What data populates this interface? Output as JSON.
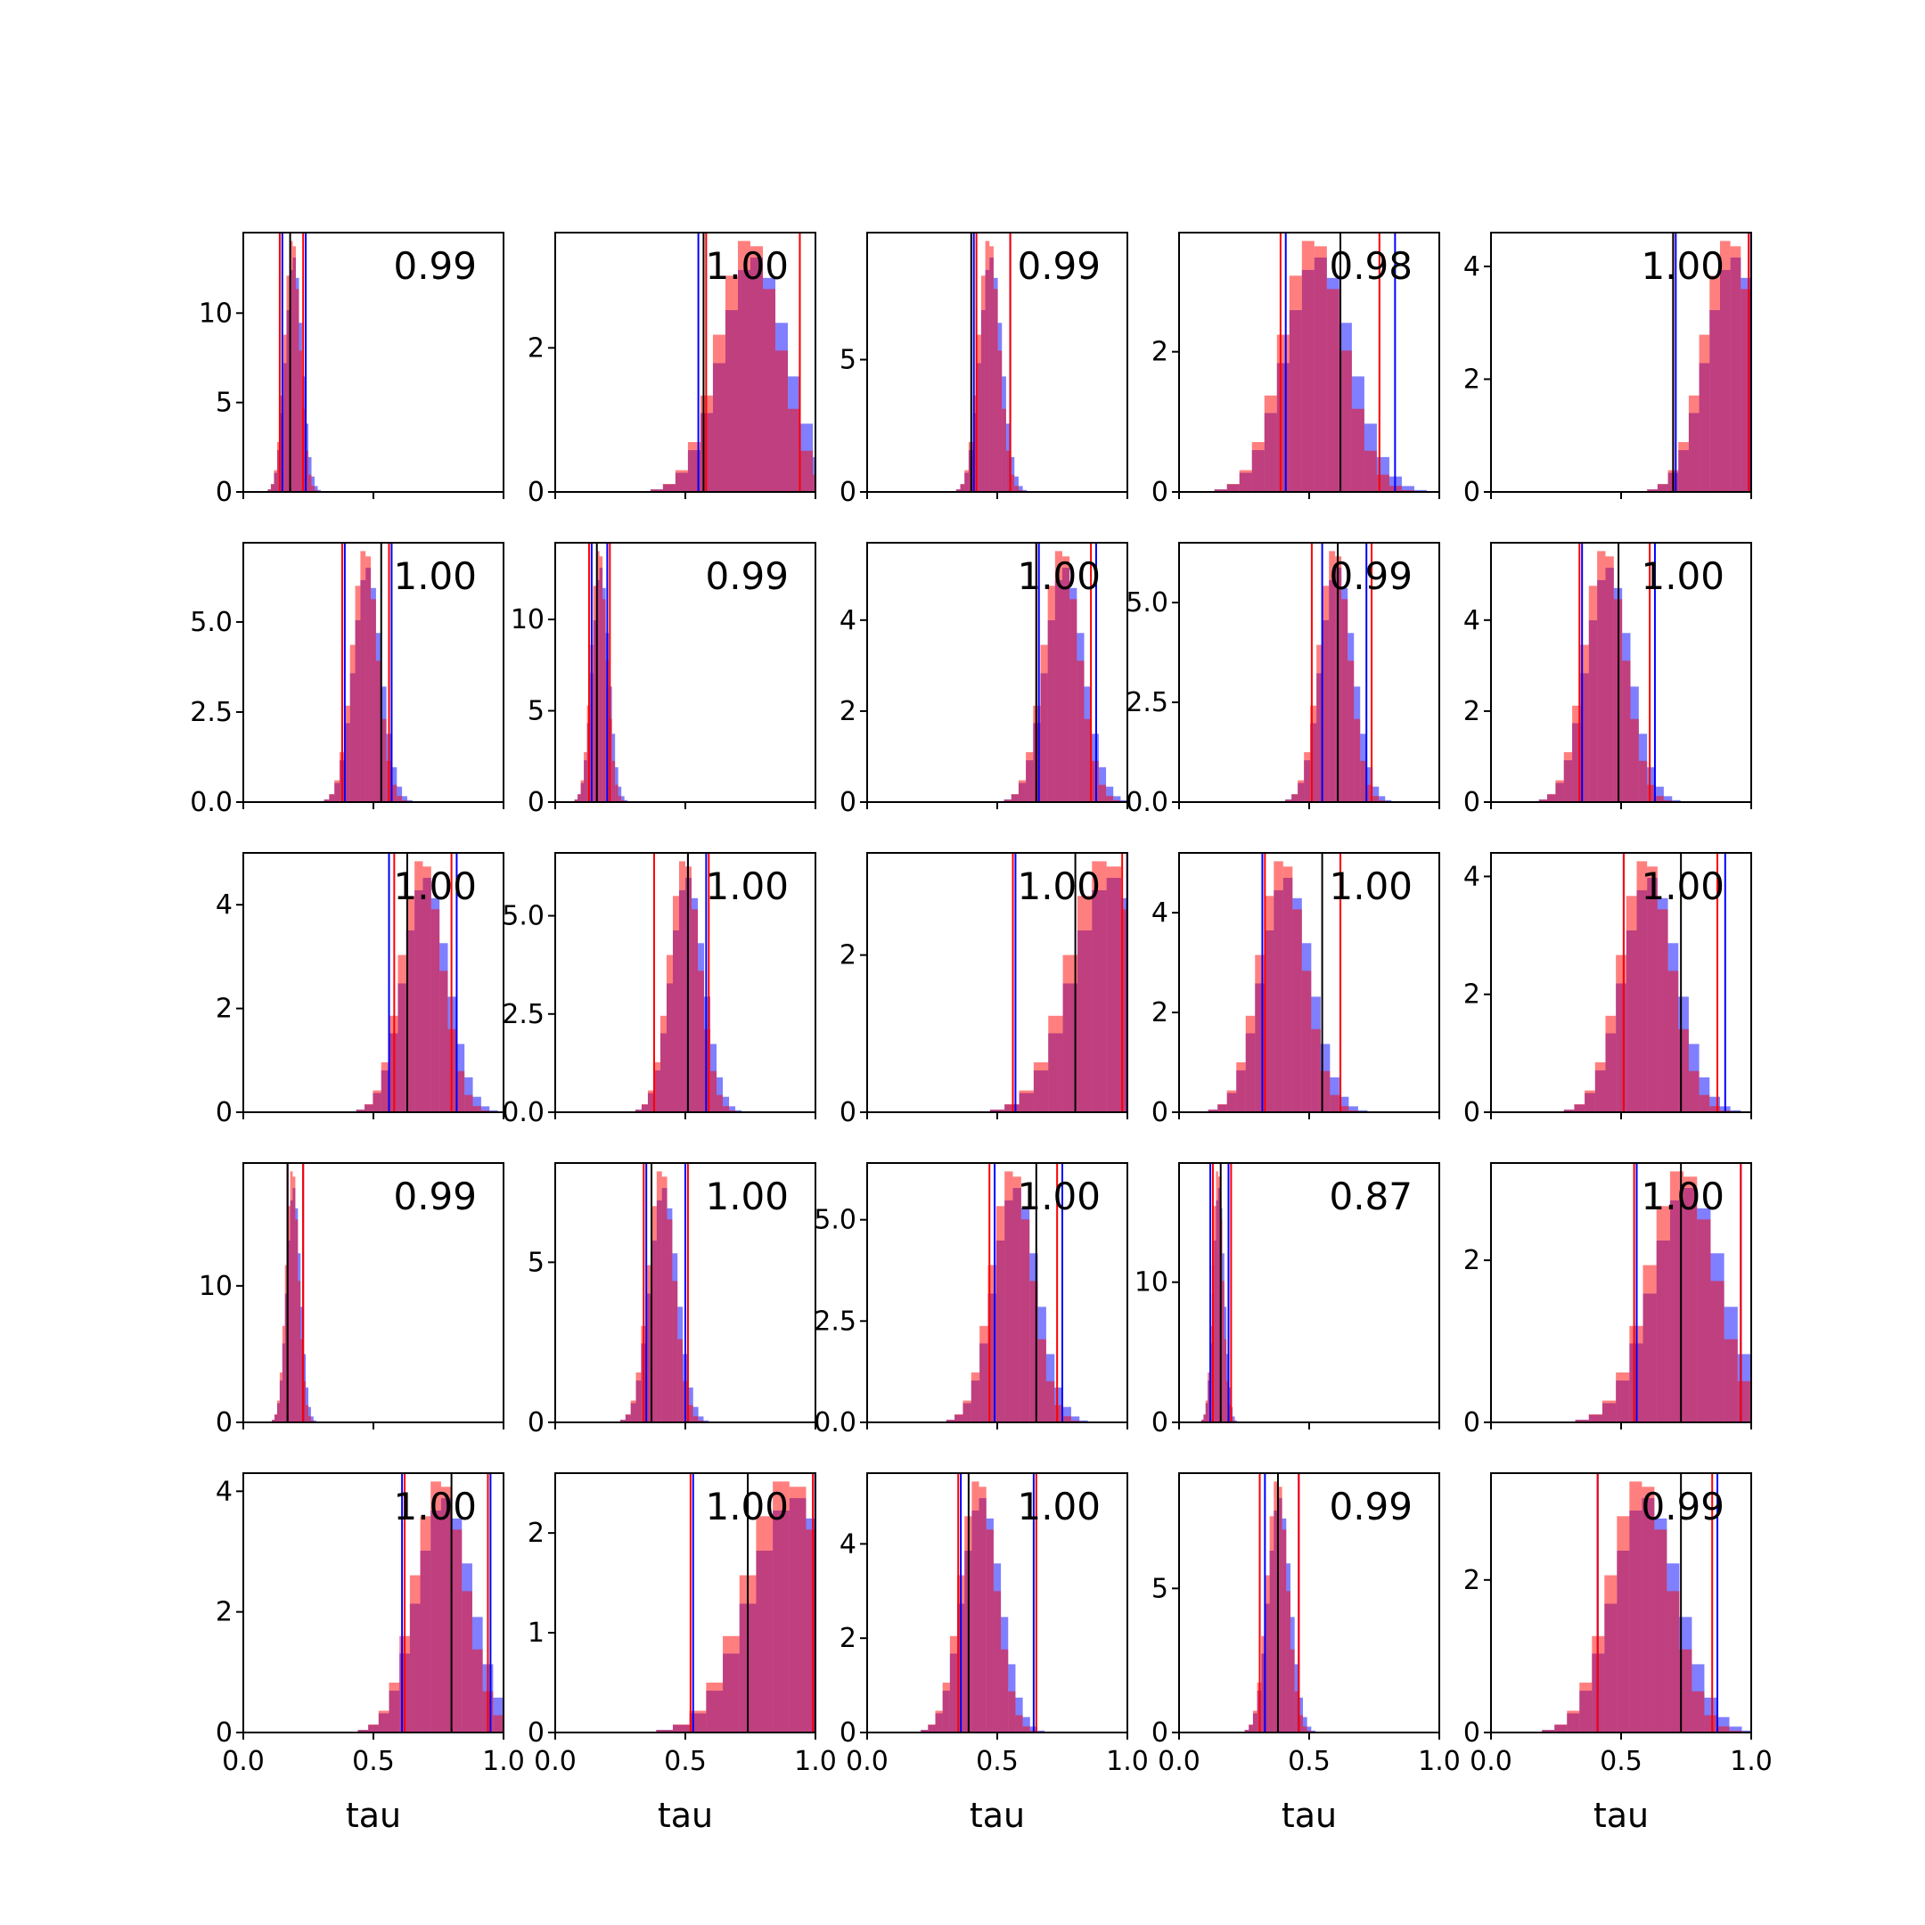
{
  "chart_data": {
    "type": "histogram-grid",
    "rows": 5,
    "cols": 5,
    "xlim": [
      0.0,
      1.0
    ],
    "xticks": [
      0.0,
      0.5,
      1.0
    ],
    "xtick_labels": [
      "0.0",
      "0.5",
      "1.0"
    ],
    "xlabel": "tau",
    "series_colors": {
      "blue": "#0000ff",
      "red": "#ff0000",
      "center": "#000000"
    },
    "panels": [
      {
        "row": 0,
        "col": 0,
        "annot": "0.99",
        "dist": "normal",
        "mean": 0.19,
        "sd": 0.03,
        "ylim": [
          0,
          14.5
        ],
        "yticks": [
          0,
          5,
          10
        ],
        "ytick_labels": [
          "0",
          "5",
          "10"
        ],
        "lines": {
          "blue": [
            0.15,
            0.24
          ],
          "red": [
            0.14,
            0.23
          ],
          "center": [
            0.18
          ]
        }
      },
      {
        "row": 0,
        "col": 1,
        "annot": "1.00",
        "dist": "normal",
        "mean": 0.75,
        "sd": 0.12,
        "ylim": [
          0,
          3.6
        ],
        "yticks": [
          0,
          2
        ],
        "ytick_labels": [
          "0",
          "2"
        ],
        "lines": {
          "blue": [
            0.55,
            0.94
          ],
          "red": [
            0.58,
            0.94
          ],
          "center": [
            0.57
          ]
        }
      },
      {
        "row": 0,
        "col": 2,
        "annot": "0.99",
        "dist": "normal",
        "mean": 0.47,
        "sd": 0.04,
        "ylim": [
          0,
          9.8
        ],
        "yticks": [
          0,
          5
        ],
        "ytick_labels": [
          "0",
          "5"
        ],
        "lines": {
          "blue": [
            0.41,
            0.55
          ],
          "red": [
            0.42,
            0.55
          ],
          "center": [
            0.4
          ]
        }
      },
      {
        "row": 0,
        "col": 3,
        "annot": "0.98",
        "dist": "normal",
        "mean": 0.52,
        "sd": 0.12,
        "ylim": [
          0,
          3.7
        ],
        "yticks": [
          0,
          2
        ],
        "ytick_labels": [
          "0",
          "2"
        ],
        "lines": {
          "blue": [
            0.41,
            0.83
          ],
          "red": [
            0.39,
            0.77
          ],
          "center": [
            0.62
          ]
        }
      },
      {
        "row": 0,
        "col": 4,
        "annot": "1.00",
        "dist": "normal",
        "mean": 0.92,
        "sd": 0.1,
        "ylim": [
          0,
          4.6
        ],
        "yticks": [
          0,
          2,
          4
        ],
        "ytick_labels": [
          "0",
          "2",
          "4"
        ],
        "lines": {
          "blue": [
            0.71,
            1.0
          ],
          "red": [
            0.7,
            0.99
          ],
          "center": [
            0.7
          ]
        }
      },
      {
        "row": 1,
        "col": 0,
        "annot": "1.00",
        "dist": "normal",
        "mean": 0.47,
        "sd": 0.05,
        "ylim": [
          0,
          7.2
        ],
        "yticks": [
          0,
          2.5,
          5
        ],
        "ytick_labels": [
          "0.0",
          "2.5",
          "5.0"
        ],
        "lines": {
          "blue": [
            0.39,
            0.57
          ],
          "red": [
            0.38,
            0.56
          ],
          "center": [
            0.53
          ]
        }
      },
      {
        "row": 1,
        "col": 1,
        "annot": "0.99",
        "dist": "normal",
        "mean": 0.17,
        "sd": 0.03,
        "ylim": [
          0,
          14.2
        ],
        "yticks": [
          0,
          5,
          10
        ],
        "ytick_labels": [
          "0",
          "5",
          "10"
        ],
        "lines": {
          "blue": [
            0.14,
            0.2
          ],
          "red": [
            0.13,
            0.21
          ],
          "center": [
            0.16
          ]
        }
      },
      {
        "row": 1,
        "col": 2,
        "annot": "1.00",
        "dist": "normal",
        "mean": 0.75,
        "sd": 0.07,
        "ylim": [
          0,
          5.7
        ],
        "yticks": [
          0,
          2,
          4
        ],
        "ytick_labels": [
          "0",
          "2",
          "4"
        ],
        "lines": {
          "blue": [
            0.66,
            0.88
          ],
          "red": [
            0.65,
            0.86
          ],
          "center": [
            0.65
          ]
        }
      },
      {
        "row": 1,
        "col": 3,
        "annot": "0.99",
        "dist": "normal",
        "mean": 0.6,
        "sd": 0.06,
        "ylim": [
          0,
          6.5
        ],
        "yticks": [
          0,
          2.5,
          5
        ],
        "ytick_labels": [
          "0.0",
          "2.5",
          "5.0"
        ],
        "lines": {
          "blue": [
            0.55,
            0.72
          ],
          "red": [
            0.51,
            0.74
          ],
          "center": [
            0.61
          ]
        }
      },
      {
        "row": 1,
        "col": 4,
        "annot": "1.00",
        "dist": "normal",
        "mean": 0.44,
        "sd": 0.08,
        "ylim": [
          0,
          5.7
        ],
        "yticks": [
          0,
          2,
          4
        ],
        "ytick_labels": [
          "0",
          "2",
          "4"
        ],
        "lines": {
          "blue": [
            0.35,
            0.63
          ],
          "red": [
            0.34,
            0.61
          ],
          "center": [
            0.49
          ]
        }
      },
      {
        "row": 2,
        "col": 0,
        "annot": "1.00",
        "dist": "normal",
        "mean": 0.69,
        "sd": 0.08,
        "ylim": [
          0,
          5.0
        ],
        "yticks": [
          0,
          2,
          4
        ],
        "ytick_labels": [
          "0",
          "2",
          "4"
        ],
        "lines": {
          "blue": [
            0.56,
            0.82
          ],
          "red": [
            0.58,
            0.8
          ],
          "center": [
            0.63
          ]
        }
      },
      {
        "row": 2,
        "col": 1,
        "annot": "1.00",
        "dist": "normal",
        "mean": 0.5,
        "sd": 0.06,
        "ylim": [
          0,
          6.6
        ],
        "yticks": [
          0,
          2.5,
          5
        ],
        "ytick_labels": [
          "0.0",
          "2.5",
          "5.0"
        ],
        "lines": {
          "blue": [
            0.51,
            0.58
          ],
          "red": [
            0.38,
            0.59
          ],
          "center": [
            0.51
          ]
        }
      },
      {
        "row": 2,
        "col": 2,
        "annot": "1.00",
        "dist": "normal",
        "mean": 0.92,
        "sd": 0.14,
        "ylim": [
          0,
          3.3
        ],
        "yticks": [
          0,
          2
        ],
        "ytick_labels": [
          "0",
          "2"
        ],
        "lines": {
          "blue": [
            0.57,
            1.0
          ],
          "red": [
            0.56,
            0.98
          ],
          "center": [
            0.8
          ]
        }
      },
      {
        "row": 2,
        "col": 3,
        "annot": "1.00",
        "dist": "normal",
        "mean": 0.4,
        "sd": 0.09,
        "ylim": [
          0,
          5.2
        ],
        "yticks": [
          0,
          2,
          4
        ],
        "ytick_labels": [
          "0",
          "2",
          "4"
        ],
        "lines": {
          "blue": [
            0.32,
            0.62
          ],
          "red": [
            0.33,
            0.62
          ],
          "center": [
            0.55
          ]
        }
      },
      {
        "row": 2,
        "col": 4,
        "annot": "1.00",
        "dist": "normal",
        "mean": 0.6,
        "sd": 0.1,
        "ylim": [
          0,
          4.4
        ],
        "yticks": [
          0,
          2,
          4
        ],
        "ytick_labels": [
          "0",
          "2",
          "4"
        ],
        "lines": {
          "blue": [
            0.51,
            0.9
          ],
          "red": [
            0.51,
            0.87
          ],
          "center": [
            0.73
          ]
        }
      },
      {
        "row": 3,
        "col": 0,
        "annot": "0.99",
        "dist": "normal",
        "mean": 0.19,
        "sd": 0.025,
        "ylim": [
          0,
          19.0
        ],
        "yticks": [
          0,
          10
        ],
        "ytick_labels": [
          "0",
          "10"
        ],
        "lines": {
          "blue": [
            0.17,
            0.23
          ],
          "red": [
            0.17,
            0.23
          ],
          "center": [
            0.17
          ]
        }
      },
      {
        "row": 3,
        "col": 1,
        "annot": "1.00",
        "dist": "normal",
        "mean": 0.41,
        "sd": 0.05,
        "ylim": [
          0,
          8.1
        ],
        "yticks": [
          0,
          5
        ],
        "ytick_labels": [
          "0",
          "5"
        ],
        "lines": {
          "blue": [
            0.35,
            0.5
          ],
          "red": [
            0.34,
            0.51
          ],
          "center": [
            0.37
          ]
        }
      },
      {
        "row": 3,
        "col": 2,
        "annot": "1.00",
        "dist": "normal",
        "mean": 0.56,
        "sd": 0.08,
        "ylim": [
          0,
          6.4
        ],
        "yticks": [
          0,
          2.5,
          5
        ],
        "ytick_labels": [
          "0.0",
          "2.5",
          "5.0"
        ],
        "lines": {
          "blue": [
            0.49,
            0.75
          ],
          "red": [
            0.47,
            0.73
          ],
          "center": [
            0.65
          ]
        }
      },
      {
        "row": 3,
        "col": 3,
        "annot": "0.87",
        "dist": "normal",
        "mean": 0.15,
        "sd": 0.02,
        "ylim": [
          0,
          18.5
        ],
        "yticks": [
          0,
          10
        ],
        "ytick_labels": [
          "0",
          "10"
        ],
        "lines": {
          "blue": [
            0.12,
            0.19
          ],
          "red": [
            0.13,
            0.2
          ],
          "center": [
            0.16
          ]
        }
      },
      {
        "row": 3,
        "col": 4,
        "annot": "1.00",
        "dist": "normal",
        "mean": 0.74,
        "sd": 0.13,
        "ylim": [
          0,
          3.2
        ],
        "yticks": [
          0,
          2
        ],
        "ytick_labels": [
          "0",
          "2"
        ],
        "lines": {
          "blue": [
            0.56,
            0.96
          ],
          "red": [
            0.55,
            0.96
          ],
          "center": [
            0.73
          ]
        }
      },
      {
        "row": 4,
        "col": 0,
        "annot": "1.00",
        "dist": "normal",
        "mean": 0.76,
        "sd": 0.1,
        "ylim": [
          0,
          4.3
        ],
        "yticks": [
          0,
          2,
          4
        ],
        "ytick_labels": [
          "0",
          "2",
          "4"
        ],
        "lines": {
          "blue": [
            0.61,
            0.95
          ],
          "red": [
            0.62,
            0.94
          ],
          "center": [
            0.8
          ]
        }
      },
      {
        "row": 4,
        "col": 1,
        "annot": "1.00",
        "dist": "normal",
        "mean": 0.9,
        "sd": 0.16,
        "ylim": [
          0,
          2.6
        ],
        "yticks": [
          0,
          1,
          2
        ],
        "ytick_labels": [
          "0",
          "1",
          "2"
        ],
        "lines": {
          "blue": [
            0.53,
            1.0
          ],
          "red": [
            0.52,
            0.99
          ],
          "center": [
            0.74
          ]
        }
      },
      {
        "row": 4,
        "col": 2,
        "annot": "1.00",
        "dist": "normal",
        "mean": 0.43,
        "sd": 0.07,
        "ylim": [
          0,
          5.5
        ],
        "yticks": [
          0,
          2,
          4
        ],
        "ytick_labels": [
          "0",
          "2",
          "4"
        ],
        "lines": {
          "blue": [
            0.36,
            0.64
          ],
          "red": [
            0.35,
            0.65
          ],
          "center": [
            0.39
          ]
        }
      },
      {
        "row": 4,
        "col": 3,
        "annot": "0.99",
        "dist": "normal",
        "mean": 0.38,
        "sd": 0.04,
        "ylim": [
          0,
          9.0
        ],
        "yticks": [
          0,
          5
        ],
        "ytick_labels": [
          "0",
          "5"
        ],
        "lines": {
          "blue": [
            0.33,
            0.46
          ],
          "red": [
            0.31,
            0.46
          ],
          "center": [
            0.38
          ]
        }
      },
      {
        "row": 4,
        "col": 4,
        "annot": "0.99",
        "dist": "normal",
        "mean": 0.58,
        "sd": 0.12,
        "ylim": [
          0,
          3.4
        ],
        "yticks": [
          0,
          2
        ],
        "ytick_labels": [
          "0",
          "2"
        ],
        "lines": {
          "blue": [
            0.41,
            0.87
          ],
          "red": [
            0.41,
            0.85
          ],
          "center": [
            0.73
          ]
        }
      }
    ]
  }
}
